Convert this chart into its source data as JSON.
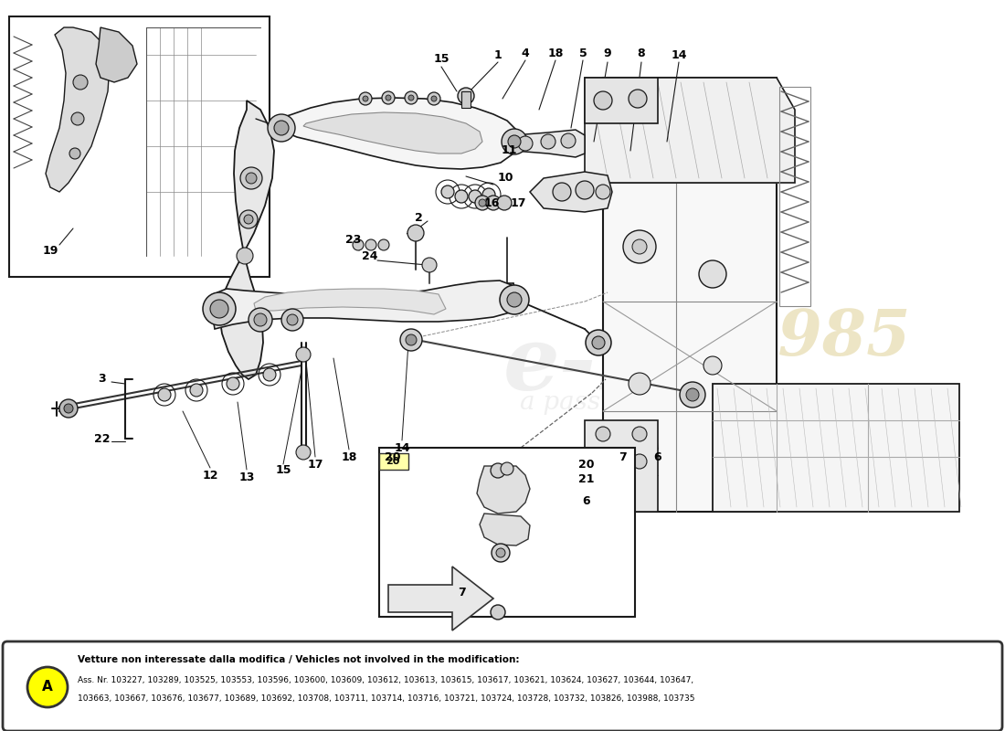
{
  "bg_color": "#ffffff",
  "line_color": "#1a1a1a",
  "note_box": {
    "label": "A",
    "label_bg": "#ffff00",
    "line1": "Vetture non interessate dalla modifica / Vehicles not involved in the modification:",
    "line2": "Ass. Nr. 103227, 103289, 103525, 103553, 103596, 103600, 103609, 103612, 103613, 103615, 103617, 103621, 103624, 103627, 103644, 103647,",
    "line3": "103663, 103667, 103676, 103677, 103689, 103692, 103708, 103711, 103714, 103716, 103721, 103724, 103728, 103732, 103826, 103988, 103735"
  }
}
